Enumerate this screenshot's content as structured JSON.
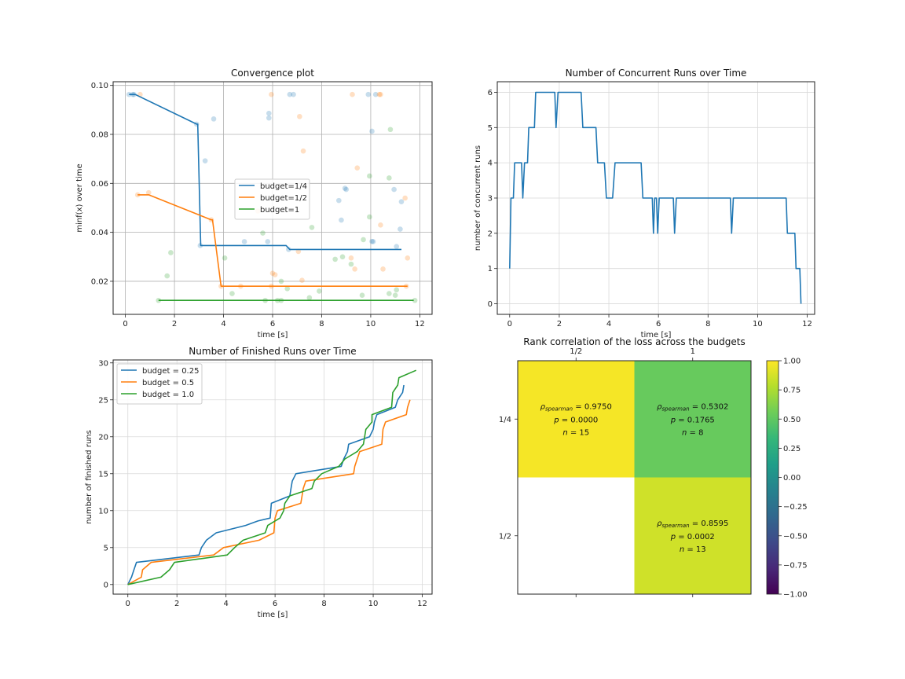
{
  "chart_data": [
    {
      "id": "convergence",
      "type": "line",
      "title": "Convergence plot",
      "xlabel": "time [s]",
      "ylabel": "minf(x) over time",
      "xlim": [
        -0.5,
        12.5
      ],
      "ylim": [
        0.0065,
        0.1015
      ],
      "xticks": [
        0,
        2,
        4,
        6,
        8,
        10,
        12
      ],
      "yticks": [
        0.02,
        0.04,
        0.06,
        0.08,
        0.1
      ],
      "ytick_labels": [
        "0.02",
        "0.04",
        "0.06",
        "0.08",
        "0.10"
      ],
      "grid": true,
      "legend_position": "center-right",
      "series": [
        {
          "name": "budget=1/4",
          "color": "#1f77b4",
          "line": [
            [
              0.15,
              0.0963
            ],
            [
              0.4,
              0.0963
            ],
            [
              2.9,
              0.0842
            ],
            [
              2.95,
              0.0842
            ],
            [
              3.07,
              0.0346
            ],
            [
              6.55,
              0.0346
            ],
            [
              6.7,
              0.033
            ],
            [
              11.25,
              0.033
            ]
          ],
          "points": [
            [
              0.15,
              0.0963
            ],
            [
              0.3,
              0.0963
            ],
            [
              0.35,
              0.0963
            ],
            [
              2.9,
              0.0842
            ],
            [
              3.25,
              0.0692
            ],
            [
              3.6,
              0.0863
            ],
            [
              3.05,
              0.0346
            ],
            [
              4.85,
              0.0362
            ],
            [
              5.8,
              0.0362
            ],
            [
              5.85,
              0.0886
            ],
            [
              5.85,
              0.0867
            ],
            [
              6.65,
              0.033
            ],
            [
              6.7,
              0.0963
            ],
            [
              6.85,
              0.0963
            ],
            [
              8.7,
              0.053
            ],
            [
              8.8,
              0.045
            ],
            [
              8.95,
              0.058
            ],
            [
              9.0,
              0.0575
            ],
            [
              9.9,
              0.0963
            ],
            [
              10.05,
              0.0813
            ],
            [
              10.2,
              0.0963
            ],
            [
              10.1,
              0.0362
            ],
            [
              10.95,
              0.0575
            ],
            [
              11.05,
              0.0342
            ],
            [
              11.2,
              0.0413
            ],
            [
              11.25,
              0.0525
            ],
            [
              10.05,
              0.0363
            ]
          ]
        },
        {
          "name": "budget=1/2",
          "color": "#ff7f0e",
          "line": [
            [
              0.5,
              0.0553
            ],
            [
              0.95,
              0.0553
            ],
            [
              3.5,
              0.0451
            ],
            [
              3.55,
              0.0451
            ],
            [
              3.9,
              0.018
            ],
            [
              11.5,
              0.018
            ]
          ],
          "points": [
            [
              0.5,
              0.0553
            ],
            [
              0.95,
              0.0562
            ],
            [
              0.6,
              0.0963
            ],
            [
              3.5,
              0.0451
            ],
            [
              3.9,
              0.018
            ],
            [
              4.7,
              0.018
            ],
            [
              5.4,
              0.0487
            ],
            [
              5.95,
              0.0963
            ],
            [
              6.0,
              0.0233
            ],
            [
              6.1,
              0.0227
            ],
            [
              5.95,
              0.018
            ],
            [
              7.1,
              0.0873
            ],
            [
              7.25,
              0.0732
            ],
            [
              7.05,
              0.0322
            ],
            [
              7.2,
              0.0204
            ],
            [
              9.25,
              0.0963
            ],
            [
              9.45,
              0.0663
            ],
            [
              9.2,
              0.0295
            ],
            [
              9.35,
              0.025
            ],
            [
              10.35,
              0.0963
            ],
            [
              10.4,
              0.0963
            ],
            [
              10.4,
              0.043
            ],
            [
              10.5,
              0.025
            ],
            [
              11.4,
              0.054
            ],
            [
              11.5,
              0.0295
            ],
            [
              11.45,
              0.018
            ]
          ]
        },
        {
          "name": "budget=1",
          "color": "#2ca02c",
          "line": [
            [
              1.35,
              0.0122
            ],
            [
              11.75,
              0.0122
            ]
          ],
          "points": [
            [
              1.35,
              0.0122
            ],
            [
              1.7,
              0.0222
            ],
            [
              1.85,
              0.0317
            ],
            [
              4.05,
              0.0295
            ],
            [
              4.35,
              0.015
            ],
            [
              5.6,
              0.0397
            ],
            [
              5.7,
              0.0122
            ],
            [
              6.2,
              0.0122
            ],
            [
              6.35,
              0.0122
            ],
            [
              6.35,
              0.02
            ],
            [
              6.6,
              0.017
            ],
            [
              7.5,
              0.0133
            ],
            [
              7.6,
              0.042
            ],
            [
              7.9,
              0.016
            ],
            [
              8.55,
              0.029
            ],
            [
              8.85,
              0.03
            ],
            [
              9.2,
              0.027
            ],
            [
              9.65,
              0.0143
            ],
            [
              9.7,
              0.037
            ],
            [
              9.95,
              0.063
            ],
            [
              9.95,
              0.0463
            ],
            [
              10.75,
              0.0622
            ],
            [
              10.75,
              0.015
            ],
            [
              10.8,
              0.082
            ],
            [
              11.05,
              0.0165
            ],
            [
              11.0,
              0.0143
            ],
            [
              11.8,
              0.0122
            ]
          ]
        }
      ]
    },
    {
      "id": "concurrent",
      "type": "line",
      "title": "Number of Concurrent Runs over Time",
      "xlabel": "time [s]",
      "ylabel": "number of concurrent runs",
      "xlim": [
        -0.5,
        12.3
      ],
      "ylim": [
        -0.3,
        6.3
      ],
      "xticks": [
        0,
        2,
        4,
        6,
        8,
        10,
        12
      ],
      "yticks": [
        0,
        1,
        2,
        3,
        4,
        5,
        6
      ],
      "grid": true,
      "series": [
        {
          "name": "concurrent runs",
          "color": "#1f77b4",
          "points": [
            [
              0,
              1
            ],
            [
              0.05,
              3
            ],
            [
              0.15,
              3
            ],
            [
              0.2,
              4
            ],
            [
              0.48,
              4
            ],
            [
              0.53,
              3
            ],
            [
              0.6,
              4
            ],
            [
              0.72,
              4
            ],
            [
              0.77,
              5
            ],
            [
              1.0,
              5
            ],
            [
              1.05,
              6
            ],
            [
              1.82,
              6
            ],
            [
              1.87,
              5
            ],
            [
              1.95,
              6
            ],
            [
              2.88,
              6
            ],
            [
              2.95,
              5
            ],
            [
              3.48,
              5
            ],
            [
              3.55,
              4
            ],
            [
              3.82,
              4
            ],
            [
              3.9,
              3
            ],
            [
              4.15,
              3
            ],
            [
              4.25,
              4
            ],
            [
              5.3,
              4
            ],
            [
              5.37,
              3
            ],
            [
              5.75,
              3
            ],
            [
              5.8,
              2
            ],
            [
              5.85,
              3
            ],
            [
              5.92,
              3
            ],
            [
              5.97,
              2
            ],
            [
              6.03,
              3
            ],
            [
              6.6,
              3
            ],
            [
              6.65,
              2
            ],
            [
              6.72,
              3
            ],
            [
              8.9,
              3
            ],
            [
              8.95,
              2
            ],
            [
              9.02,
              3
            ],
            [
              11.15,
              3
            ],
            [
              11.2,
              2
            ],
            [
              11.5,
              2
            ],
            [
              11.55,
              1
            ],
            [
              11.7,
              1
            ],
            [
              11.75,
              0
            ]
          ]
        }
      ]
    },
    {
      "id": "finished",
      "type": "line",
      "title": "Number of Finished Runs over Time",
      "xlabel": "time [s]",
      "ylabel": "number of finished runs",
      "xlim": [
        -0.6,
        12.4
      ],
      "ylim": [
        -1.3,
        30.4
      ],
      "xticks": [
        0,
        2,
        4,
        6,
        8,
        10,
        12
      ],
      "yticks": [
        0,
        5,
        10,
        15,
        20,
        25,
        30
      ],
      "grid": true,
      "legend_position": "upper-left",
      "series": [
        {
          "name": "budget = 0.25",
          "color": "#1f77b4",
          "points": [
            [
              0,
              0
            ],
            [
              0.15,
              1
            ],
            [
              0.25,
              2
            ],
            [
              0.35,
              3
            ],
            [
              2.9,
              4
            ],
            [
              3.0,
              5
            ],
            [
              3.2,
              6
            ],
            [
              3.6,
              7
            ],
            [
              4.8,
              8
            ],
            [
              5.3,
              8.6
            ],
            [
              5.8,
              9
            ],
            [
              5.85,
              11
            ],
            [
              6.6,
              12
            ],
            [
              6.65,
              13
            ],
            [
              6.7,
              14
            ],
            [
              6.85,
              15
            ],
            [
              8.7,
              16
            ],
            [
              8.8,
              17
            ],
            [
              8.95,
              18
            ],
            [
              9.0,
              19
            ],
            [
              9.85,
              20
            ],
            [
              10.0,
              21
            ],
            [
              10.05,
              22
            ],
            [
              10.15,
              23
            ],
            [
              10.9,
              24
            ],
            [
              11.0,
              25
            ],
            [
              11.2,
              26
            ],
            [
              11.25,
              27
            ]
          ]
        },
        {
          "name": "budget = 0.5",
          "color": "#ff7f0e",
          "points": [
            [
              0,
              0
            ],
            [
              0.55,
              1
            ],
            [
              0.6,
              2
            ],
            [
              0.95,
              3
            ],
            [
              3.5,
              4
            ],
            [
              3.9,
              5
            ],
            [
              5.35,
              6
            ],
            [
              5.95,
              7
            ],
            [
              6.0,
              9
            ],
            [
              6.1,
              10
            ],
            [
              7.05,
              11
            ],
            [
              7.1,
              12
            ],
            [
              7.15,
              13
            ],
            [
              7.25,
              14
            ],
            [
              9.2,
              15
            ],
            [
              9.25,
              16
            ],
            [
              9.35,
              17
            ],
            [
              9.45,
              18
            ],
            [
              10.35,
              19
            ],
            [
              10.4,
              21
            ],
            [
              10.5,
              22
            ],
            [
              11.35,
              23
            ],
            [
              11.4,
              24
            ],
            [
              11.5,
              25
            ]
          ]
        },
        {
          "name": "budget = 1.0",
          "color": "#2ca02c",
          "points": [
            [
              0,
              0
            ],
            [
              1.35,
              1
            ],
            [
              1.7,
              2
            ],
            [
              1.9,
              3
            ],
            [
              4.05,
              4
            ],
            [
              4.35,
              5
            ],
            [
              4.7,
              6
            ],
            [
              5.6,
              7
            ],
            [
              5.7,
              8
            ],
            [
              6.2,
              9
            ],
            [
              6.35,
              10
            ],
            [
              6.4,
              11
            ],
            [
              6.6,
              12
            ],
            [
              7.5,
              13
            ],
            [
              7.6,
              14
            ],
            [
              7.9,
              15
            ],
            [
              8.6,
              16
            ],
            [
              8.85,
              17
            ],
            [
              9.35,
              18
            ],
            [
              9.6,
              19
            ],
            [
              9.7,
              21
            ],
            [
              9.95,
              22
            ],
            [
              9.95,
              23
            ],
            [
              10.75,
              24
            ],
            [
              10.8,
              26
            ],
            [
              11.0,
              27
            ],
            [
              11.05,
              28
            ],
            [
              11.75,
              29
            ]
          ]
        }
      ]
    },
    {
      "id": "rank-correlation",
      "type": "heatmap",
      "title": "Rank correlation of the loss across the budgets",
      "x_categories": [
        "1/2",
        "1"
      ],
      "y_categories": [
        "1/4",
        "1/2"
      ],
      "vmin": -1.0,
      "vmax": 1.0,
      "colormap": "viridis",
      "colorbar_ticks": [
        1.0,
        0.75,
        0.5,
        0.25,
        0.0,
        -0.25,
        -0.5,
        -0.75,
        -1.0
      ],
      "colorbar_tick_labels": [
        "1.00",
        "0.75",
        "0.50",
        "0.25",
        "0.00",
        "−0.25",
        "−0.50",
        "−0.75",
        "−1.00"
      ],
      "cells": [
        {
          "row": 0,
          "col": 0,
          "rho": "0.9750",
          "p": "0.0000",
          "n": "15",
          "value": 0.975
        },
        {
          "row": 0,
          "col": 1,
          "rho": "0.5302",
          "p": "0.1765",
          "n": "8",
          "value": 0.5302
        },
        {
          "row": 1,
          "col": 0,
          "empty": true
        },
        {
          "row": 1,
          "col": 1,
          "rho": "0.8595",
          "p": "0.0002",
          "n": "13",
          "value": 0.8595
        }
      ],
      "cell_labels": {
        "rho_symbol": "ρ",
        "rho_subscript": "spearman",
        "p_symbol": "p",
        "n_symbol": "n",
        "equals": " = "
      }
    }
  ]
}
